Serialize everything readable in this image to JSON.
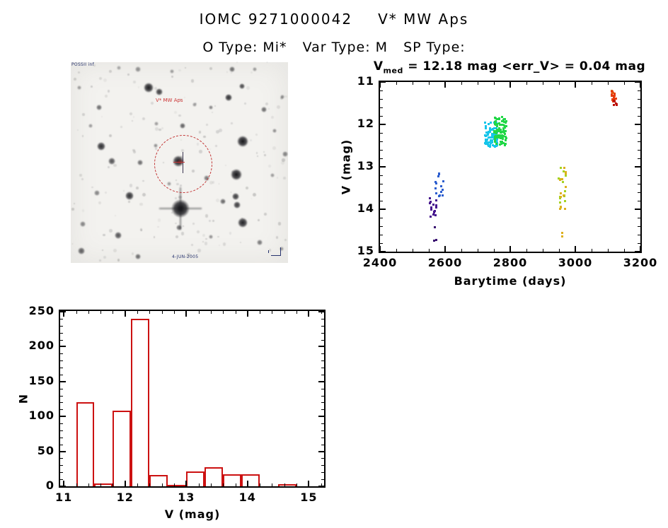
{
  "header": {
    "title_id": "IOMC 9271000042",
    "title_name": "V* MW Aps",
    "subtitle_parts": {
      "otype": "O Type: Mi*",
      "vartype": "Var Type: M",
      "sptype": "SP Type:"
    }
  },
  "finder": {
    "corner_label": "POSSII inf",
    "target_label": "V* MW Aps",
    "bottom_label": "4-JUN-2005",
    "annotation_color": "#c23434",
    "micro_text_color": "#26336e",
    "circle_color": "#c23434",
    "speckle_count": 160,
    "stars_xyros": [
      [
        110,
        36,
        7,
        0.92,
        0
      ],
      [
        125,
        42,
        5,
        0.8,
        0
      ],
      [
        95,
        10,
        4,
        0.45,
        0
      ],
      [
        143,
        13,
        3,
        0.4,
        0
      ],
      [
        228,
        10,
        4,
        0.6,
        0
      ],
      [
        242,
        34,
        4,
        0.75,
        0
      ],
      [
        198,
        64,
        3,
        0.5,
        0
      ],
      [
        223,
        50,
        5,
        0.85,
        0
      ],
      [
        273,
        67,
        4,
        0.6,
        0
      ],
      [
        299,
        49,
        3,
        0.45,
        0
      ],
      [
        158,
        90,
        4,
        0.65,
        0
      ],
      [
        121,
        87,
        3,
        0.4,
        0
      ],
      [
        40,
        64,
        4,
        0.6,
        0
      ],
      [
        43,
        119,
        6,
        0.85,
        0
      ],
      [
        12,
        36,
        3,
        0.4,
        0
      ],
      [
        243,
        112,
        8,
        0.95,
        0
      ],
      [
        288,
        97,
        3,
        0.45,
        0
      ],
      [
        58,
        140,
        5,
        0.7,
        0
      ],
      [
        98,
        142,
        4,
        0.6,
        0
      ],
      [
        234,
        159,
        8,
        0.95,
        0
      ],
      [
        152,
        140,
        8,
        0.9,
        0
      ],
      [
        192,
        164,
        4,
        0.55,
        0
      ],
      [
        139,
        172,
        3,
        0.4,
        0
      ],
      [
        83,
        189,
        6,
        0.85,
        0
      ],
      [
        37,
        185,
        4,
        0.5,
        0
      ],
      [
        155,
        207,
        13,
        1.0,
        1
      ],
      [
        215,
        197,
        4,
        0.6,
        0
      ],
      [
        233,
        190,
        5,
        0.8,
        0
      ],
      [
        235,
        202,
        5,
        0.8,
        0
      ],
      [
        243,
        227,
        7,
        0.9,
        0
      ],
      [
        153,
        234,
        4,
        0.6,
        0
      ],
      [
        17,
        229,
        4,
        0.5,
        0
      ],
      [
        15,
        267,
        5,
        0.65,
        0
      ],
      [
        67,
        245,
        5,
        0.7,
        0
      ],
      [
        95,
        275,
        4,
        0.6,
        0
      ],
      [
        198,
        247,
        3,
        0.45,
        0
      ],
      [
        267,
        255,
        4,
        0.55,
        0
      ],
      [
        298,
        264,
        3,
        0.4,
        0
      ],
      [
        285,
        160,
        3,
        0.4,
        0
      ],
      [
        303,
        130,
        4,
        0.5,
        0
      ],
      [
        120,
        118,
        3,
        0.45,
        0
      ],
      [
        175,
        60,
        3,
        0.4,
        0
      ],
      [
        68,
        8,
        3,
        0.35,
        0
      ],
      [
        260,
        10,
        3,
        0.4,
        0
      ],
      [
        28,
        90,
        3,
        0.4,
        0
      ]
    ]
  },
  "chart_data": [
    {
      "type": "scatter",
      "title": "V_med = 12.18 mag <err_V> = 0.04 mag",
      "title_v": "V",
      "title_sub": "med",
      "title_rest": " = 12.18 mag <err_V> = 0.04 mag",
      "xlabel": "Barytime (days)",
      "ylabel": "V (mag)",
      "xlim": [
        2400,
        3200
      ],
      "ylim": [
        11,
        15
      ],
      "y_axis_reversed": true,
      "xticks": [
        2400,
        2600,
        2800,
        3000,
        3200
      ],
      "yticks": [
        11,
        12,
        13,
        14,
        15
      ],
      "x_minor_step": 50,
      "y_minor_step": 0.2,
      "grid": false,
      "legend": "none",
      "clusters": [
        {
          "label": "epoch1 violet",
          "color": "#45148d",
          "barytime": [
            2552,
            2578
          ],
          "v": [
            13.72,
            14.18
          ],
          "n": 16,
          "cols": 3
        },
        {
          "label": "epoch1 violet faint",
          "color": "#38106f",
          "barytime": [
            2563,
            2576
          ],
          "v": [
            14.42,
            14.75
          ],
          "n": 3,
          "cols": 2
        },
        {
          "label": "epoch1 blue",
          "color": "#2c5ecf",
          "barytime": [
            2568,
            2596
          ],
          "v": [
            13.15,
            13.72
          ],
          "n": 15,
          "cols": 3
        },
        {
          "label": "epoch2 cyan",
          "color": "#16c5ea",
          "barytime": [
            2722,
            2762
          ],
          "v": [
            11.95,
            12.52
          ],
          "n": 80,
          "cols": 6
        },
        {
          "label": "epoch2 green",
          "color": "#21d747",
          "barytime": [
            2749,
            2790
          ],
          "v": [
            11.82,
            12.5
          ],
          "n": 85,
          "cols": 6
        },
        {
          "label": "epoch3 yellow-green",
          "color": "#a5d321",
          "barytime": [
            2946,
            2972
          ],
          "v": [
            12.98,
            14.12
          ],
          "n": 14,
          "cols": 2
        },
        {
          "label": "epoch3 gold",
          "color": "#ddb01e",
          "barytime": [
            2951,
            2975
          ],
          "v": [
            12.84,
            14.02
          ],
          "n": 13,
          "cols": 2
        },
        {
          "label": "epoch3 gold faint",
          "color": "#ddb01e",
          "barytime": [
            2957,
            2968
          ],
          "v": [
            14.5,
            14.68
          ],
          "n": 2,
          "cols": 1
        },
        {
          "label": "epoch4 orange",
          "color": "#d9741c",
          "barytime": [
            3110,
            3118
          ],
          "v": [
            11.18,
            11.26
          ],
          "n": 3,
          "cols": 1
        },
        {
          "label": "epoch4 red",
          "color": "#e63c0d",
          "barytime": [
            3108,
            3127
          ],
          "v": [
            11.22,
            11.46
          ],
          "n": 14,
          "cols": 2
        },
        {
          "label": "epoch4 dark red",
          "color": "#bc120a",
          "barytime": [
            3114,
            3132
          ],
          "v": [
            11.4,
            11.58
          ],
          "n": 6,
          "cols": 2
        }
      ]
    },
    {
      "type": "bar",
      "title": "",
      "xlabel": "V (mag)",
      "ylabel": "N",
      "xlim": [
        10.94,
        15.25
      ],
      "ylim": [
        0,
        251
      ],
      "xticks": [
        11,
        12,
        13,
        14,
        15
      ],
      "yticks": [
        0,
        50,
        100,
        150,
        200,
        250
      ],
      "x_minor_step": 0.2,
      "y_minor_step": 10,
      "grid": false,
      "bar_color": "#cc1111",
      "bin_edges": [
        11.2,
        11.5,
        11.8,
        12.1,
        12.4,
        12.7,
        13.0,
        13.3,
        13.6,
        13.9,
        14.2,
        14.5,
        14.8
      ],
      "values": [
        120,
        4,
        108,
        240,
        16,
        1,
        21,
        27,
        17,
        17,
        0,
        3
      ]
    }
  ]
}
